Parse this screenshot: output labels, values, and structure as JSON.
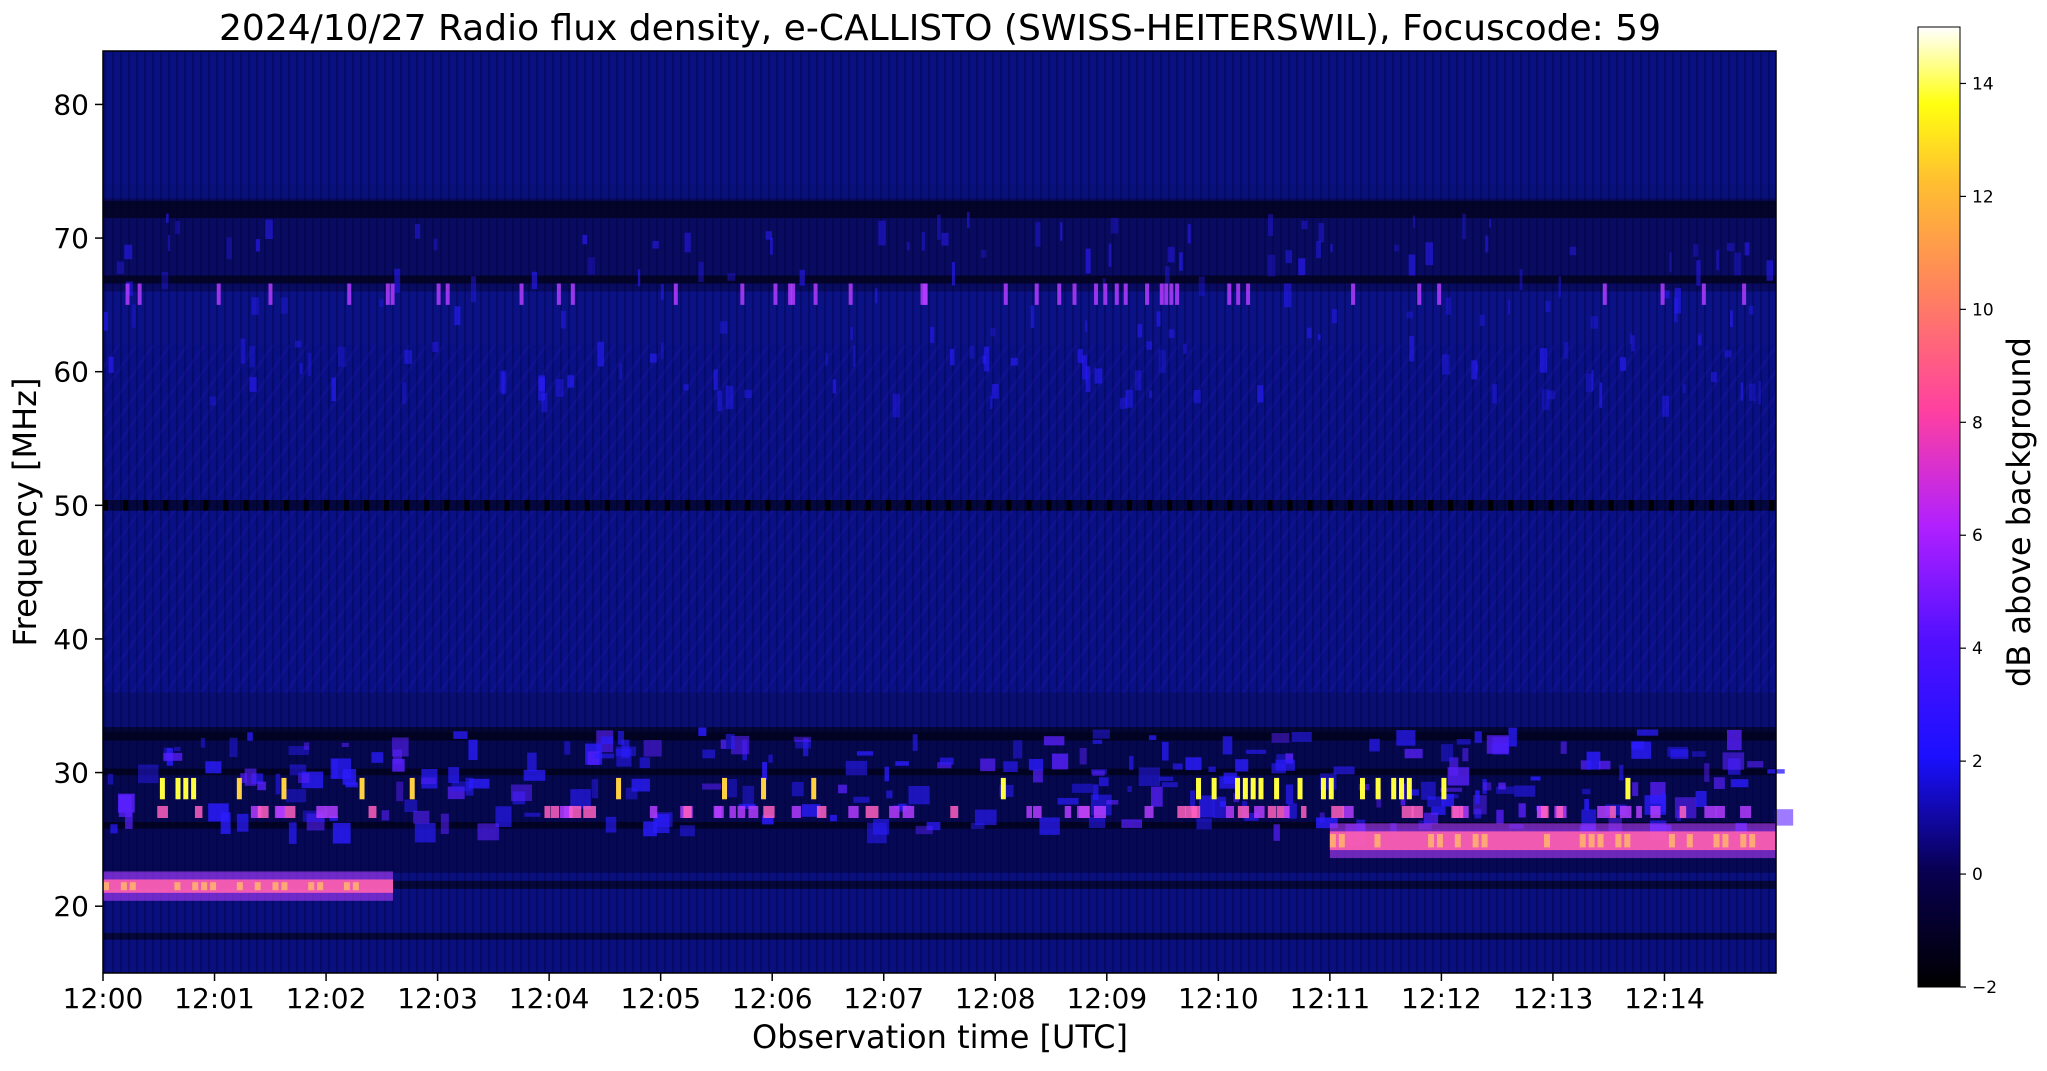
{
  "chart_data": {
    "type": "heatmap",
    "title": "2024/10/27  Radio flux density, e-CALLISTO (SWISS-HEITERSWIL), Focuscode: 59",
    "xlabel": "Observation time [UTC]",
    "ylabel": "Frequency [MHz]",
    "x_ticks": [
      "12:00",
      "12:01",
      "12:02",
      "12:03",
      "12:04",
      "12:05",
      "12:06",
      "12:07",
      "12:08",
      "12:09",
      "12:10",
      "12:11",
      "12:12",
      "12:13",
      "12:14"
    ],
    "x_range_min": [
      0,
      15
    ],
    "y_ticks": [
      20,
      30,
      40,
      50,
      60,
      70,
      80
    ],
    "ylim": [
      15,
      84
    ],
    "colorbar": {
      "label": "dB above background",
      "range": [
        -2,
        15
      ],
      "ticks": [
        -2,
        0,
        2,
        4,
        6,
        8,
        10,
        12,
        14
      ],
      "colormap": "gnuplot2"
    },
    "colors": {
      "background_level": "#08107a",
      "quiet_band": "#000000",
      "moderate": "#2b1cff",
      "strong": "#b33cff",
      "burst": "#ffb070",
      "peak": "#ffff40"
    },
    "features": [
      {
        "kind": "band",
        "freq": [
          21,
          22
        ],
        "t": [
          0,
          2.6
        ],
        "level": 9
      },
      {
        "kind": "band",
        "freq": [
          24.2,
          25.6
        ],
        "t": [
          11,
          15
        ],
        "level": 10
      },
      {
        "kind": "bursts",
        "freq": [
          28,
          29.6
        ],
        "t": [
          0.3,
          0.9
        ],
        "level": 13
      },
      {
        "kind": "bursts",
        "freq": [
          28,
          29.6
        ],
        "t": [
          9.8,
          11.9
        ],
        "level": 13
      },
      {
        "kind": "line",
        "freq": [
          65,
          66.6
        ],
        "level": 5
      }
    ]
  }
}
